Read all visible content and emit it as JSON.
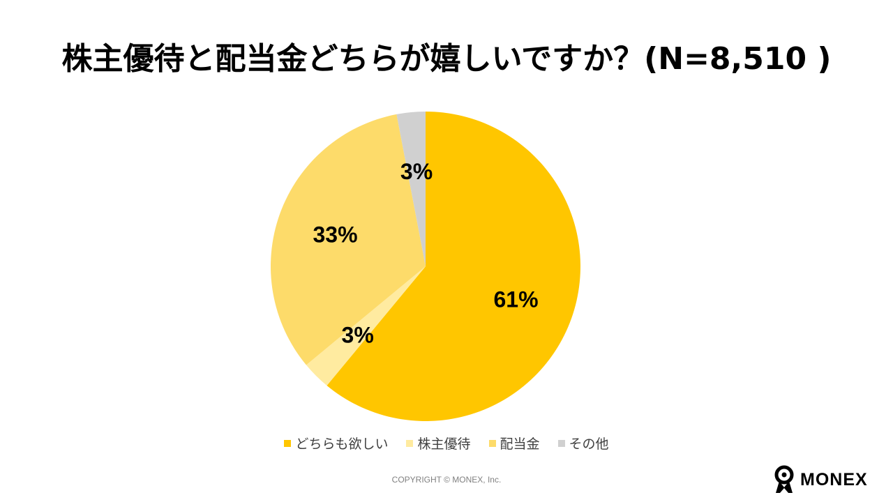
{
  "title": "株主優待と配当金どちらが嬉しいですか？(N=8,510 )",
  "chart_data": {
    "type": "pie",
    "title": "株主優待と配当金どちらが嬉しいですか？(N=8,510 )",
    "labels": [
      "どちらも欲しい",
      "株主優待",
      "配当金",
      "その他"
    ],
    "values": [
      61,
      3,
      33,
      3
    ],
    "value_labels": [
      "61%",
      "3%",
      "33%",
      "3%"
    ],
    "colors": [
      "#FFC600",
      "#FFEBA0",
      "#FDDB6A",
      "#D0D0D0"
    ],
    "start": "12 o'clock, clockwise",
    "legend_position": "bottom"
  },
  "footer": {
    "copyright": "COPYRIGHT © MONEX, Inc."
  },
  "logo": {
    "text": "MONEX",
    "icon": "monex-person-icon"
  }
}
